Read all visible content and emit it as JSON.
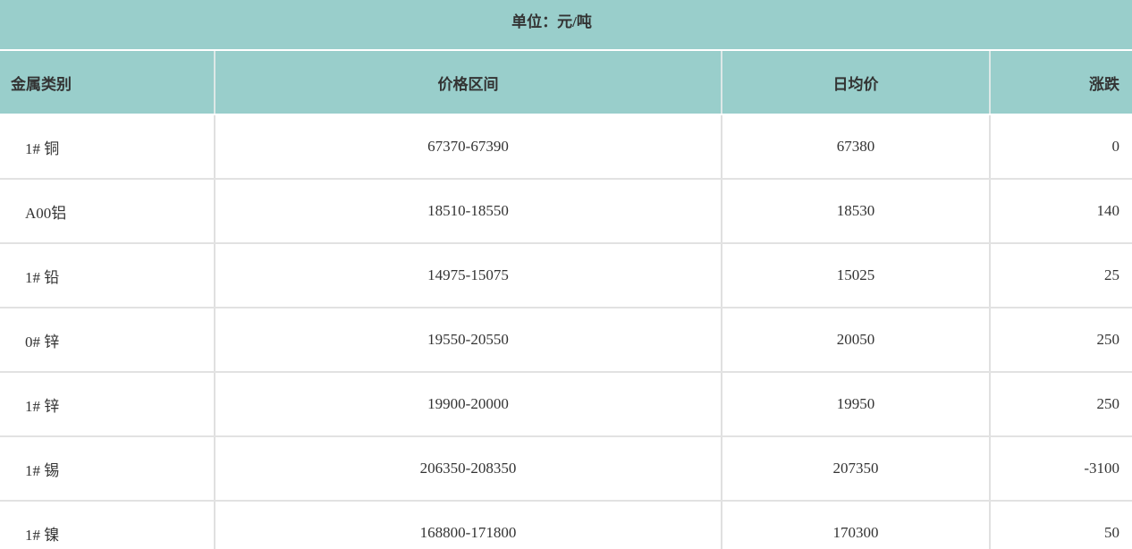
{
  "caption": {
    "unit_label": "单位：元/吨"
  },
  "table": {
    "columns": [
      {
        "key": "category",
        "label": "金属类别"
      },
      {
        "key": "price_range",
        "label": "价格区间"
      },
      {
        "key": "avg_price",
        "label": "日均价"
      },
      {
        "key": "change",
        "label": "涨跌"
      }
    ],
    "rows": [
      {
        "category": "1# 铜",
        "price_range": "67370-67390",
        "avg_price": "67380",
        "change": "0"
      },
      {
        "category": "A00铝",
        "price_range": "18510-18550",
        "avg_price": "18530",
        "change": "140"
      },
      {
        "category": "1# 铅",
        "price_range": "14975-15075",
        "avg_price": "15025",
        "change": "25"
      },
      {
        "category": "0# 锌",
        "price_range": "19550-20550",
        "avg_price": "20050",
        "change": "250"
      },
      {
        "category": "1# 锌",
        "price_range": "19900-20000",
        "avg_price": "19950",
        "change": "250"
      },
      {
        "category": "1# 锡",
        "price_range": "206350-208350",
        "avg_price": "207350",
        "change": "-3100"
      },
      {
        "category": "1# 镍",
        "price_range": "168800-171800",
        "avg_price": "170300",
        "change": "50"
      }
    ]
  },
  "chart_data": {
    "type": "table",
    "title": "单位：元/吨",
    "columns": [
      "金属类别",
      "价格区间",
      "日均价",
      "涨跌"
    ],
    "rows": [
      [
        "1# 铜",
        "67370-67390",
        67380,
        0
      ],
      [
        "A00铝",
        "18510-18550",
        18530,
        140
      ],
      [
        "1# 铅",
        "14975-15075",
        15025,
        25
      ],
      [
        "0# 锌",
        "19550-20550",
        20050,
        250
      ],
      [
        "1# 锌",
        "19900-20000",
        19950,
        250
      ],
      [
        "1# 锡",
        "206350-208350",
        207350,
        -3100
      ],
      [
        "1# 镍",
        "168800-171800",
        170300,
        50
      ]
    ],
    "layout_hints": {
      "header_bg": "#99cecb",
      "row_bg": "#ffffff",
      "border_color": "#e0e0e0",
      "text_color": "#333333"
    }
  }
}
